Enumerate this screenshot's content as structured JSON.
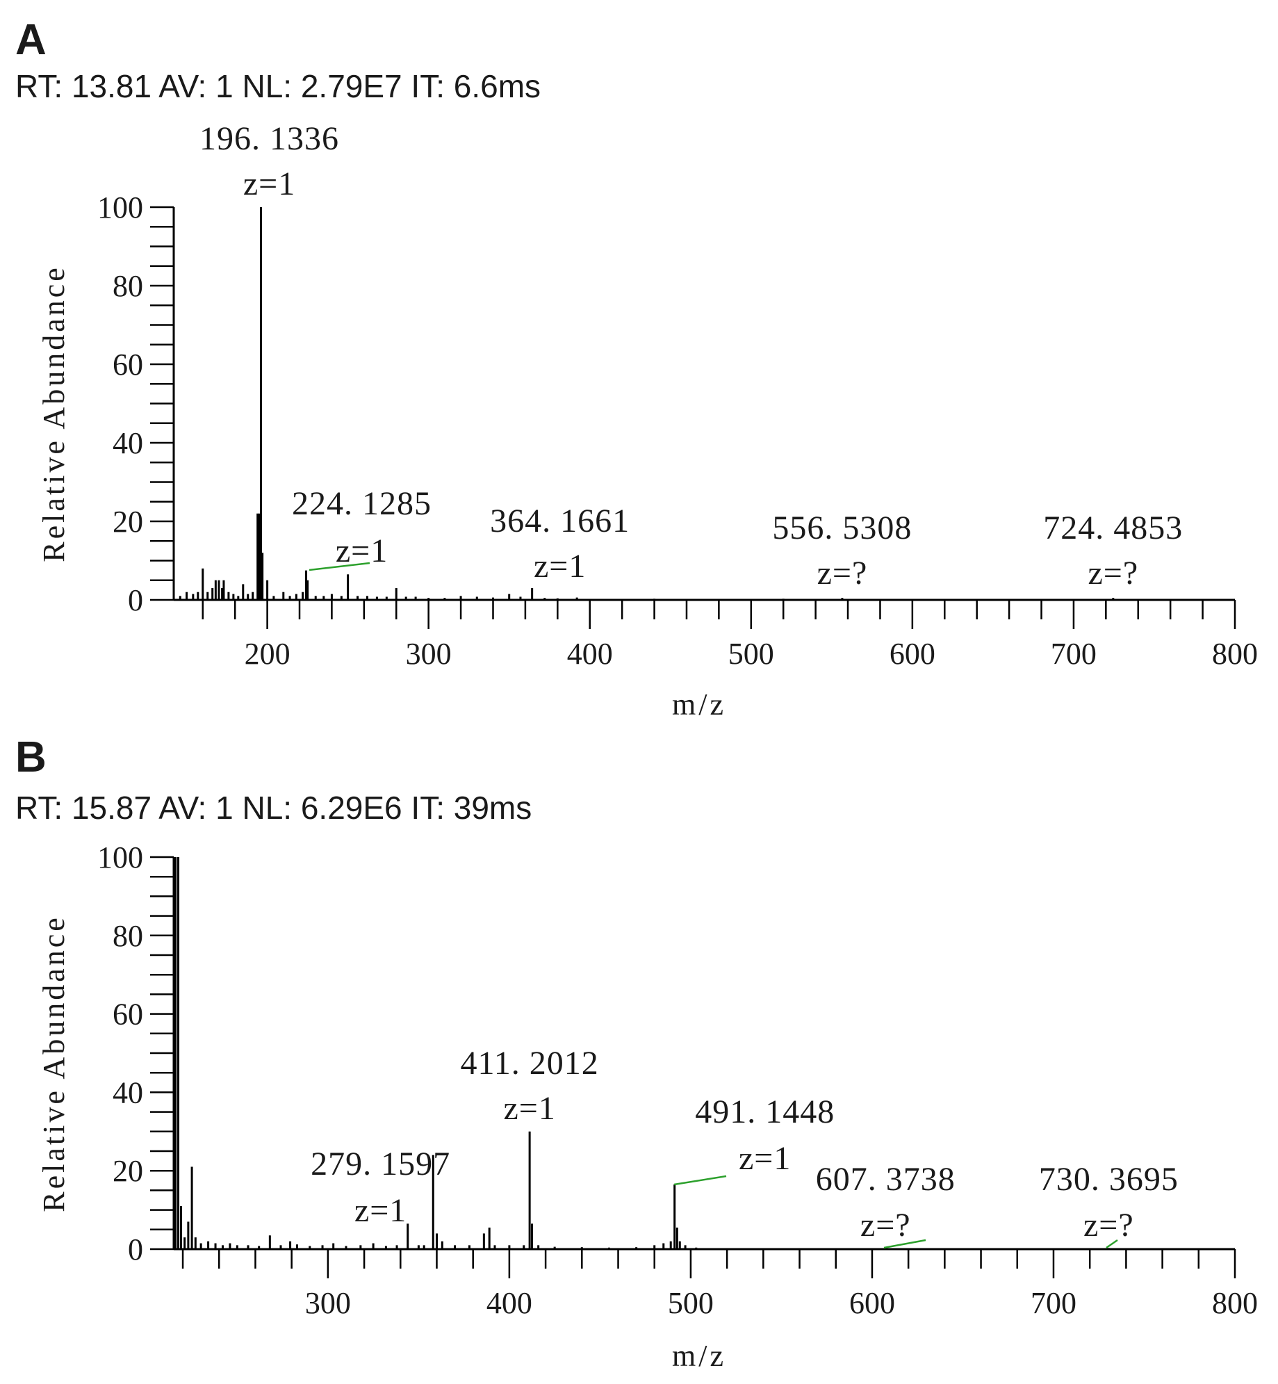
{
  "chart_data": [
    {
      "type": "bar",
      "panel": "A",
      "header": "RT: 13.81 AV: 1 NL: 2.79E7 IT: 6.6ms",
      "xlabel": "m/z",
      "ylabel": "Relative Abundance",
      "xlim": [
        142,
        800
      ],
      "ylim": [
        0,
        100
      ],
      "xticks": [
        200,
        300,
        400,
        500,
        600,
        700,
        800
      ],
      "yticks": [
        0,
        20,
        40,
        60,
        80,
        100
      ],
      "annotations": [
        {
          "mz": "196. 1336",
          "charge": "z=1",
          "x": 196.1,
          "y": 100
        },
        {
          "mz": "224. 1285",
          "charge": "z=1",
          "x": 224.1,
          "y": 7.5,
          "leader": true
        },
        {
          "mz": "364. 1661",
          "charge": "z=1",
          "x": 364.2,
          "y": 3
        },
        {
          "mz": "556. 5308",
          "charge": "z=?",
          "x": 556.5,
          "y": 0.5
        },
        {
          "mz": "724. 4853",
          "charge": "z=?",
          "x": 724.5,
          "y": 0.5
        }
      ],
      "peaks": [
        {
          "x": 146,
          "y": 1
        },
        {
          "x": 150,
          "y": 2
        },
        {
          "x": 154,
          "y": 1.5
        },
        {
          "x": 157,
          "y": 2
        },
        {
          "x": 160,
          "y": 8
        },
        {
          "x": 163,
          "y": 2
        },
        {
          "x": 166,
          "y": 3
        },
        {
          "x": 168,
          "y": 5
        },
        {
          "x": 170,
          "y": 5
        },
        {
          "x": 172,
          "y": 3
        },
        {
          "x": 173,
          "y": 5
        },
        {
          "x": 176,
          "y": 2
        },
        {
          "x": 179,
          "y": 1.5
        },
        {
          "x": 182,
          "y": 1
        },
        {
          "x": 185,
          "y": 4
        },
        {
          "x": 188,
          "y": 1.5
        },
        {
          "x": 191,
          "y": 2
        },
        {
          "x": 194,
          "y": 22
        },
        {
          "x": 195,
          "y": 22
        },
        {
          "x": 196.1,
          "y": 100
        },
        {
          "x": 197,
          "y": 12
        },
        {
          "x": 200,
          "y": 5
        },
        {
          "x": 204,
          "y": 1
        },
        {
          "x": 210,
          "y": 2
        },
        {
          "x": 214,
          "y": 1
        },
        {
          "x": 218,
          "y": 1.5
        },
        {
          "x": 222,
          "y": 2
        },
        {
          "x": 224.1,
          "y": 7.5
        },
        {
          "x": 225,
          "y": 5
        },
        {
          "x": 230,
          "y": 1
        },
        {
          "x": 235,
          "y": 1
        },
        {
          "x": 240,
          "y": 1.5
        },
        {
          "x": 246,
          "y": 1
        },
        {
          "x": 250,
          "y": 6.5
        },
        {
          "x": 256,
          "y": 1
        },
        {
          "x": 262,
          "y": 1
        },
        {
          "x": 268,
          "y": 0.8
        },
        {
          "x": 274,
          "y": 0.8
        },
        {
          "x": 280,
          "y": 3
        },
        {
          "x": 286,
          "y": 0.8
        },
        {
          "x": 292,
          "y": 0.8
        },
        {
          "x": 300,
          "y": 0.5
        },
        {
          "x": 310,
          "y": 0.5
        },
        {
          "x": 320,
          "y": 1
        },
        {
          "x": 330,
          "y": 0.8
        },
        {
          "x": 340,
          "y": 0.6
        },
        {
          "x": 350,
          "y": 1.5
        },
        {
          "x": 357,
          "y": 0.8
        },
        {
          "x": 364.2,
          "y": 3
        },
        {
          "x": 372,
          "y": 0.5
        },
        {
          "x": 380,
          "y": 0.4
        },
        {
          "x": 392,
          "y": 0.6
        },
        {
          "x": 440,
          "y": 0.3
        },
        {
          "x": 520,
          "y": 0.3
        },
        {
          "x": 556.5,
          "y": 0.5
        },
        {
          "x": 724.5,
          "y": 0.5
        }
      ]
    },
    {
      "type": "bar",
      "panel": "B",
      "header": "RT: 15.87 AV: 1 NL: 6.29E6 IT: 39ms",
      "xlabel": "m/z",
      "ylabel": "Relative Abundance",
      "xlim": [
        215,
        800
      ],
      "ylim": [
        0,
        100
      ],
      "xticks": [
        300,
        400,
        500,
        600,
        700,
        800
      ],
      "yticks": [
        0,
        20,
        40,
        60,
        80,
        100
      ],
      "annotations": [
        {
          "mz": "279. 1597",
          "charge": "z=1",
          "x": 279.2,
          "y": 2
        },
        {
          "mz": "411. 2012",
          "charge": "z=1",
          "x": 411.2,
          "y": 30
        },
        {
          "mz": "491. 1448",
          "charge": "z=1",
          "x": 491.1,
          "y": 16.5,
          "leader": true
        },
        {
          "mz": "607. 3738",
          "charge": "z=?",
          "x": 607.4,
          "y": 0.5,
          "leader": true
        },
        {
          "mz": "730. 3695",
          "charge": "z=?",
          "x": 730.4,
          "y": 0.5,
          "leader": true
        }
      ],
      "peaks": [
        {
          "x": 216,
          "y": 100
        },
        {
          "x": 217.5,
          "y": 100
        },
        {
          "x": 219,
          "y": 11
        },
        {
          "x": 221,
          "y": 3
        },
        {
          "x": 223,
          "y": 7
        },
        {
          "x": 225,
          "y": 21
        },
        {
          "x": 227,
          "y": 3
        },
        {
          "x": 230,
          "y": 1.5
        },
        {
          "x": 234,
          "y": 2
        },
        {
          "x": 238,
          "y": 1.5
        },
        {
          "x": 242,
          "y": 1
        },
        {
          "x": 246,
          "y": 1.5
        },
        {
          "x": 250,
          "y": 1
        },
        {
          "x": 256,
          "y": 1
        },
        {
          "x": 262,
          "y": 0.8
        },
        {
          "x": 268,
          "y": 3.5
        },
        {
          "x": 274,
          "y": 1
        },
        {
          "x": 279.2,
          "y": 2
        },
        {
          "x": 283,
          "y": 1.2
        },
        {
          "x": 290,
          "y": 0.8
        },
        {
          "x": 297,
          "y": 1
        },
        {
          "x": 303,
          "y": 1.5
        },
        {
          "x": 310,
          "y": 0.8
        },
        {
          "x": 318,
          "y": 1
        },
        {
          "x": 325,
          "y": 1.5
        },
        {
          "x": 332,
          "y": 0.8
        },
        {
          "x": 338,
          "y": 1
        },
        {
          "x": 344,
          "y": 6.5
        },
        {
          "x": 350,
          "y": 1
        },
        {
          "x": 353,
          "y": 1
        },
        {
          "x": 358,
          "y": 24
        },
        {
          "x": 360,
          "y": 4
        },
        {
          "x": 363,
          "y": 2
        },
        {
          "x": 370,
          "y": 1
        },
        {
          "x": 378,
          "y": 1
        },
        {
          "x": 386,
          "y": 4
        },
        {
          "x": 389,
          "y": 5.5
        },
        {
          "x": 392,
          "y": 1
        },
        {
          "x": 400,
          "y": 1
        },
        {
          "x": 408,
          "y": 1
        },
        {
          "x": 411.2,
          "y": 30
        },
        {
          "x": 412.5,
          "y": 6.5
        },
        {
          "x": 416,
          "y": 1
        },
        {
          "x": 425,
          "y": 0.6
        },
        {
          "x": 440,
          "y": 0.5
        },
        {
          "x": 455,
          "y": 0.4
        },
        {
          "x": 470,
          "y": 0.5
        },
        {
          "x": 480,
          "y": 1
        },
        {
          "x": 485,
          "y": 1.5
        },
        {
          "x": 489,
          "y": 2
        },
        {
          "x": 491.1,
          "y": 16.5
        },
        {
          "x": 492.5,
          "y": 5.5
        },
        {
          "x": 494,
          "y": 2
        },
        {
          "x": 497,
          "y": 1
        },
        {
          "x": 503,
          "y": 0.4
        },
        {
          "x": 607.4,
          "y": 0.3
        },
        {
          "x": 730.4,
          "y": 0.3
        }
      ]
    }
  ]
}
